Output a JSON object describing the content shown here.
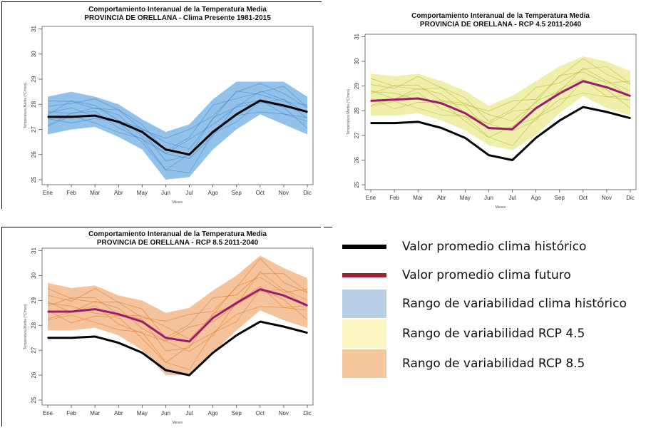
{
  "chart_data": [
    {
      "type": "line",
      "title": "Comportamiento Interanual de la Temperatura Media",
      "subtitle": "PROVINCIA DE ORELLANA - Clima Presente 1981-2015",
      "xlabel": "Meses",
      "ylabel": "Temperatura Media (°C/mes)",
      "categories": [
        "Ene",
        "Feb",
        "Mar",
        "Abr",
        "May",
        "Jun",
        "Jul",
        "Ago",
        "Sep",
        "Oct",
        "Nov",
        "Dic"
      ],
      "ylim": [
        24.8,
        31.1
      ],
      "yticks": [
        25,
        26,
        27,
        28,
        29,
        30,
        31
      ],
      "band": {
        "color": "#7fb7e6",
        "line_color": "#3a7fc4",
        "lower": [
          26.8,
          27.0,
          27.1,
          26.7,
          26.2,
          25.0,
          25.1,
          26.2,
          27.0,
          27.6,
          27.2,
          26.8
        ],
        "upper": [
          28.3,
          28.5,
          28.3,
          28.0,
          27.4,
          26.9,
          27.2,
          28.2,
          28.9,
          28.9,
          28.9,
          28.3
        ]
      },
      "series": [
        {
          "name": "Valor promedio clima histórico",
          "color": "#000000",
          "values": [
            27.5,
            27.5,
            27.55,
            27.3,
            26.9,
            26.2,
            26.0,
            26.9,
            27.6,
            28.15,
            27.95,
            27.7
          ]
        }
      ]
    },
    {
      "type": "line",
      "title": "Comportamiento Interanual de la Temperatura Media",
      "subtitle": "PROVINCIA DE ORELLANA - RCP 4.5 2011-2040",
      "xlabel": "Meses",
      "ylabel": "Temperatura Media (°C/mes)",
      "categories": [
        "Ene",
        "Feb",
        "Mar",
        "Abr",
        "May",
        "Jun",
        "Jul",
        "Ago",
        "Sep",
        "Oct",
        "Nov",
        "Dic"
      ],
      "ylim": [
        24.8,
        31.1
      ],
      "yticks": [
        25,
        26,
        27,
        28,
        29,
        30,
        31
      ],
      "band": {
        "color": "#ecec9c",
        "line_color": "#b0ae20",
        "lower": [
          27.8,
          27.8,
          27.9,
          27.6,
          27.2,
          26.6,
          26.4,
          27.0,
          27.9,
          28.6,
          28.1,
          27.8
        ],
        "upper": [
          29.5,
          29.4,
          29.5,
          29.2,
          28.8,
          28.2,
          28.6,
          29.2,
          29.8,
          30.2,
          30.0,
          29.6
        ]
      },
      "series": [
        {
          "name": "Valor promedio clima histórico",
          "color": "#000000",
          "values": [
            27.5,
            27.5,
            27.55,
            27.3,
            26.9,
            26.2,
            26.0,
            26.9,
            27.6,
            28.15,
            27.95,
            27.7
          ]
        },
        {
          "name": "Valor promedio clima futuro",
          "color": "#9b1c6e",
          "values": [
            28.4,
            28.45,
            28.5,
            28.3,
            27.9,
            27.3,
            27.25,
            28.1,
            28.7,
            29.2,
            28.95,
            28.6
          ]
        }
      ]
    },
    {
      "type": "line",
      "title": "Comportamiento Interanual de la Temperatura Media",
      "subtitle": "PROVINCIA DE ORELLANA - RCP 8.5 2011-2040",
      "xlabel": "Meses",
      "ylabel": "Temperatura Media (°C/mes)",
      "categories": [
        "Ene",
        "Feb",
        "Mar",
        "Abr",
        "May",
        "Jun",
        "Jul",
        "Ago",
        "Sep",
        "Oct",
        "Nov",
        "Dic"
      ],
      "ylim": [
        24.8,
        31.1
      ],
      "yticks": [
        25,
        26,
        27,
        28,
        29,
        30,
        31
      ],
      "band": {
        "color": "#f2b98a",
        "line_color": "#d9731f",
        "lower": [
          27.8,
          27.8,
          27.9,
          27.6,
          27.0,
          26.0,
          26.0,
          26.9,
          27.8,
          28.6,
          28.2,
          27.9
        ],
        "upper": [
          29.7,
          29.5,
          29.6,
          29.2,
          29.0,
          28.5,
          28.7,
          29.4,
          30.0,
          30.8,
          30.3,
          29.9
        ]
      },
      "series": [
        {
          "name": "Valor promedio clima histórico",
          "color": "#000000",
          "values": [
            27.5,
            27.5,
            27.55,
            27.3,
            26.9,
            26.2,
            26.0,
            26.9,
            27.6,
            28.15,
            27.95,
            27.7
          ]
        },
        {
          "name": "Valor promedio clima futuro",
          "color": "#9b1c6e",
          "values": [
            28.55,
            28.55,
            28.65,
            28.45,
            28.15,
            27.5,
            27.35,
            28.3,
            28.9,
            29.45,
            29.2,
            28.8
          ]
        }
      ]
    }
  ],
  "legend": {
    "items": [
      {
        "label": "Valor promedio clima histórico",
        "kind": "line",
        "color": "#000000"
      },
      {
        "label": "Valor promedio clima futuro",
        "kind": "line",
        "color": "#9b2335"
      },
      {
        "label": "Rango de variabilidad clima histórico",
        "kind": "box",
        "color": "#b7cfe6"
      },
      {
        "label": "Rango de variabilidad RCP 4.5",
        "kind": "box",
        "color": "#fbf6c0"
      },
      {
        "label": "Rango de variabilidad RCP 8.5",
        "kind": "box",
        "color": "#f5c59c"
      }
    ]
  }
}
